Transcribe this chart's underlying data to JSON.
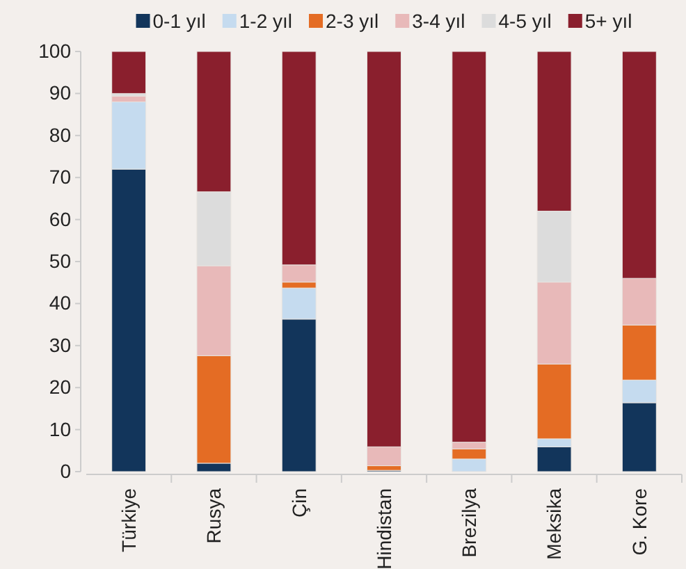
{
  "chart_data": {
    "type": "bar",
    "stacked": true,
    "categories": [
      "Türkiye",
      "Rusya",
      "Çin",
      "Hindistan",
      "Brezilya",
      "Meksika",
      "G. Kore"
    ],
    "series": [
      {
        "name": "0-1 yıl",
        "color": "#12355b",
        "values": [
          72,
          2,
          36.3,
          0.3,
          0,
          5.9,
          16.4
        ]
      },
      {
        "name": "1-2 yıl",
        "color": "#c5dbef",
        "values": [
          16,
          0,
          7.4,
          0,
          3,
          1.9,
          5.4
        ]
      },
      {
        "name": "2-3 yıl",
        "color": "#e46c24",
        "values": [
          0,
          25.6,
          1.4,
          1.1,
          2.4,
          17.8,
          13.1
        ]
      },
      {
        "name": "3-4 yıl",
        "color": "#e8b9b9",
        "values": [
          1.4,
          21.4,
          4.1,
          4.5,
          1.6,
          19.5,
          11.1
        ]
      },
      {
        "name": "4-5 yıl",
        "color": "#dcdcdc",
        "values": [
          0.6,
          17.6,
          0,
          0,
          0,
          16.9,
          0
        ]
      },
      {
        "name": "5+ yıl",
        "color": "#8a1f2d",
        "values": [
          10,
          33.4,
          50.8,
          94.1,
          93,
          38,
          54
        ]
      }
    ],
    "ylim": [
      0,
      100
    ],
    "yticks": [
      0,
      10,
      20,
      30,
      40,
      50,
      60,
      70,
      80,
      90,
      100
    ],
    "legend": "top"
  }
}
